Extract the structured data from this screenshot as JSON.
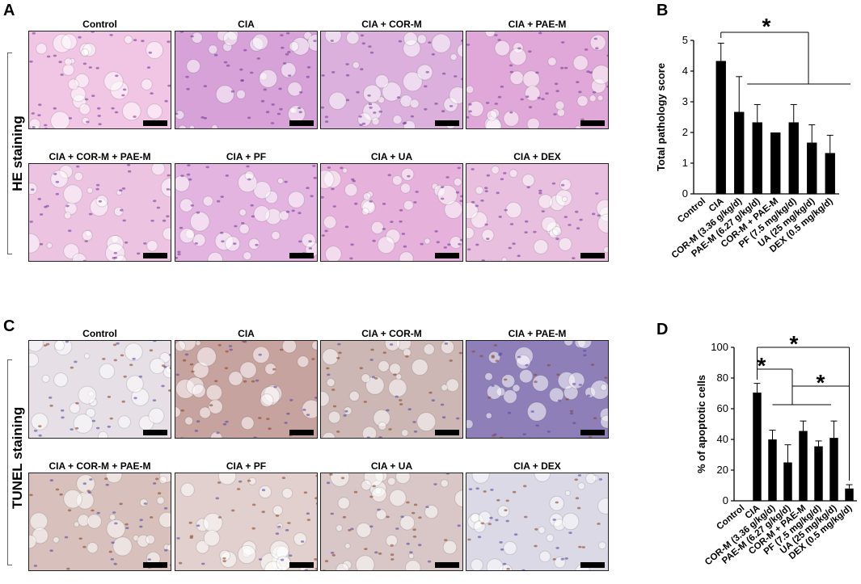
{
  "panels": {
    "A": "A",
    "B": "B",
    "C": "C",
    "D": "D"
  },
  "stain_labels": {
    "he": "HE staining",
    "tunel": "TUNEL staining"
  },
  "micrographs": {
    "he": [
      {
        "label": "Control",
        "color": "#f1c6e4"
      },
      {
        "label": "CIA",
        "color": "#d6a2d8"
      },
      {
        "label": "CIA + COR-M",
        "color": "#dcb0dc"
      },
      {
        "label": "CIA + PAE-M",
        "color": "#e0a8d8"
      },
      {
        "label": "CIA + COR-M + PAE-M",
        "color": "#ecc4e2"
      },
      {
        "label": "CIA + PF",
        "color": "#e4b4e0"
      },
      {
        "label": "CIA + UA",
        "color": "#e6b2dc"
      },
      {
        "label": "CIA + DEX",
        "color": "#e9bfe0"
      }
    ],
    "tunel": [
      {
        "label": "Control",
        "color": "#e6e0e6"
      },
      {
        "label": "CIA",
        "color": "#c7a39f"
      },
      {
        "label": "CIA + COR-M",
        "color": "#cdb7b4"
      },
      {
        "label": "CIA + PAE-M",
        "color": "#8f7fb9"
      },
      {
        "label": "CIA + COR-M + PAE-M",
        "color": "#d8c1bd"
      },
      {
        "label": "CIA + PF",
        "color": "#e1d0cd"
      },
      {
        "label": "CIA + UA",
        "color": "#d9c6c6"
      },
      {
        "label": "CIA + DEX",
        "color": "#dcd9e6"
      }
    ]
  },
  "chart_data": [
    {
      "type": "bar",
      "categories": [
        "Control",
        "CIA",
        "COR-M (3.36 g/kg/d)",
        "PAE-M (6.27 g/kg/d)",
        "COR-M + PAE-M",
        "PF (7.5 mg/kg/d)",
        "UA (25 mg/kg/d)",
        "DEX (0.5 mg/kg/d)"
      ],
      "values": [
        0,
        4.33,
        2.67,
        2.33,
        2.0,
        2.33,
        1.67,
        1.33
      ],
      "errors": [
        0,
        0.58,
        1.15,
        0.58,
        0,
        0.58,
        0.58,
        0.58
      ],
      "ylabel": "Total pathology score",
      "ylim": [
        0,
        5
      ],
      "yticks": [
        "0",
        "1",
        "2",
        "3",
        "4",
        "5"
      ],
      "significance": [
        "*"
      ],
      "bar_color": "#000000"
    },
    {
      "type": "bar",
      "categories": [
        "Control",
        "CIA",
        "COR-M (3.36 g/kg/d)",
        "PAE-M (6.27 g/kg/d)",
        "COR-M + PAE-M",
        "PF (7.5 mg/kg/d)",
        "UA (25 mg/kg/d)",
        "DEX (0.5 mg/kg/d)"
      ],
      "values": [
        0,
        70.5,
        40.0,
        25.0,
        45.5,
        35.5,
        41.0,
        8.0
      ],
      "errors": [
        0,
        6.0,
        6.0,
        11.5,
        6.5,
        3.5,
        11.0,
        2.5
      ],
      "ylabel": "% of apoptotic cells",
      "ylim": [
        0,
        100
      ],
      "yticks": [
        "0",
        "20",
        "40",
        "60",
        "80",
        "100"
      ],
      "significance": [
        "*",
        "*",
        "*"
      ],
      "bar_color": "#000000"
    }
  ]
}
